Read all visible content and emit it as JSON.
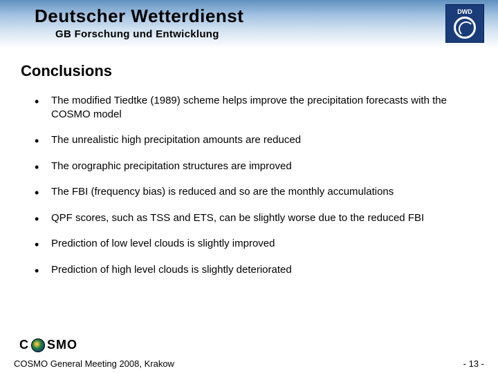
{
  "header": {
    "title": "Deutscher Wetterdienst",
    "subtitle": "GB Forschung und Entwicklung",
    "logo_label": "DWD"
  },
  "slide": {
    "title": "Conclusions",
    "bullets": [
      "The modified Tiedtke (1989) scheme helps improve the precipitation forecasts with the COSMO model",
      "The unrealistic high precipitation amounts are reduced",
      "The orographic precipitation structures are improved",
      "The FBI (frequency bias) is reduced and so are the monthly accumulations",
      "QPF scores, such as TSS and ETS, can be slightly worse due to the reduced FBI",
      "Prediction of low level clouds is slightly improved",
      "Prediction of high level clouds is slightly deteriorated"
    ]
  },
  "footer": {
    "logo_text_left": "C",
    "logo_text_right": "SMO",
    "meeting": "COSMO General Meeting 2008, Krakow",
    "page": "- 13 -"
  },
  "colors": {
    "header_gradient_top": "#6090c0",
    "header_gradient_bottom": "#ffffff",
    "logo_bg": "#1a3d7a",
    "text": "#000000"
  }
}
